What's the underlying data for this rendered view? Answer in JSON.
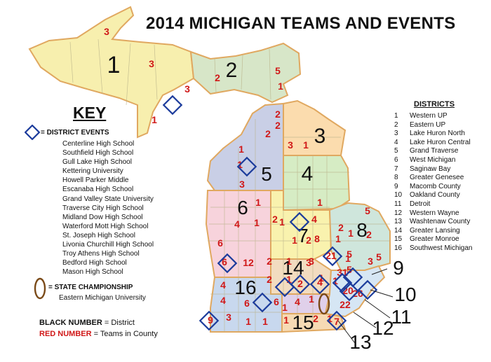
{
  "title": "2014 MICHIGAN TEAMS AND EVENTS",
  "key": {
    "heading": "KEY",
    "district_events_label": "= DISTRICT EVENTS",
    "event_sites": [
      "Centerline High School",
      "Southfield High School",
      "Gull Lake High School",
      "Kettering University",
      "Howell Parker Middle",
      "Escanaba High School",
      "Grand Valley State University",
      "Traverse City High School",
      "Midland Dow High School",
      "Waterford Mott High School",
      "St. Joseph High School",
      "Livonia Churchill High School",
      "Troy Athens High School",
      "Bedford High School",
      "Mason High School"
    ],
    "state_championship_label": "= STATE CHAMPIONSHIP",
    "state_championship_site": "Eastern Michigan University",
    "black_number_prefix": "BLACK NUMBER",
    "black_number_suffix": " = District",
    "red_number_prefix": "RED NUMBER",
    "red_number_suffix": " = Teams in County"
  },
  "districts_header": "DISTRICTS",
  "districts": [
    {
      "num": "1",
      "name": "Western UP"
    },
    {
      "num": "2",
      "name": "Eastern UP"
    },
    {
      "num": "3",
      "name": "Lake Huron North"
    },
    {
      "num": "4",
      "name": "Lake Huron Central"
    },
    {
      "num": "5",
      "name": "Grand Traverse"
    },
    {
      "num": "6",
      "name": "West Michigan"
    },
    {
      "num": "7",
      "name": "Saginaw Bay"
    },
    {
      "num": "8",
      "name": "Greater Genesee"
    },
    {
      "num": "9",
      "name": "Macomb County"
    },
    {
      "num": "10",
      "name": "Oakland County"
    },
    {
      "num": "11",
      "name": "Detroit"
    },
    {
      "num": "12",
      "name": "Western Wayne"
    },
    {
      "num": "13",
      "name": "Washtenaw County"
    },
    {
      "num": "14",
      "name": "Greater Lansing"
    },
    {
      "num": "15",
      "name": "Greater Monroe"
    },
    {
      "num": "16",
      "name": "Southwest Michigan"
    }
  ],
  "map": {
    "district_labels": [
      "1",
      "2",
      "3",
      "4",
      "5",
      "6",
      "7",
      "8",
      "9",
      "10",
      "11",
      "12",
      "13",
      "14",
      "15",
      "16"
    ],
    "county_team_counts": [
      "3",
      "3",
      "1",
      "3",
      "2",
      "5",
      "1",
      "2",
      "2",
      "3",
      "1",
      "2",
      "1",
      "3",
      "1",
      "5",
      "2",
      "2",
      "4",
      "1",
      "1",
      "2",
      "1",
      "6",
      "1",
      "1",
      "4",
      "2",
      "1",
      "1",
      "8",
      "3",
      "1",
      "5",
      "6",
      "12",
      "2",
      "1",
      "3",
      "21",
      "5",
      "3",
      "31",
      "5",
      "4",
      "4",
      "2",
      "4",
      "1",
      "20",
      "4",
      "6",
      "6",
      "1",
      "26",
      "22",
      "9",
      "3",
      "1",
      "2",
      "1",
      "1",
      "7",
      "1",
      "1",
      "2",
      "1",
      "1"
    ],
    "colors": {
      "district_1": "#f7efae",
      "district_2": "#d7e6c8",
      "district_3": "#fbdcae",
      "district_4": "#d6ecc4",
      "district_5": "#c9cfe6",
      "district_6": "#f7d3dc",
      "district_7": "#f9f2ae",
      "district_8": "#cfe6dc",
      "district_14": "#f2dcc0",
      "district_15": "#f6dab4",
      "district_16": "#c8d8ee",
      "district_13": "#e0d0ea",
      "metro": "#d6e6f4",
      "border": "#e0a860",
      "event_marker": "#1c3c9c",
      "championship_marker": "#7a4a18",
      "team_count_text": "#d01818",
      "district_number_text": "#111111"
    }
  }
}
